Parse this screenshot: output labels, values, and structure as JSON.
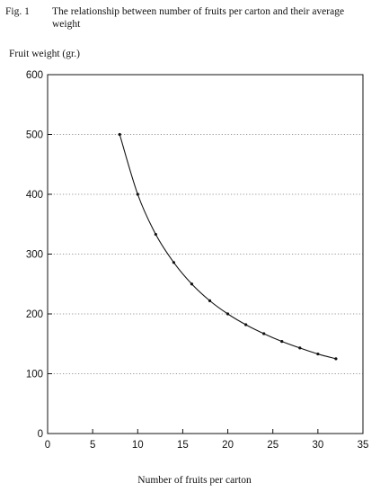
{
  "figure": {
    "number": "Fig. 1",
    "caption_line1": "The relationship between number of fruits per carton and their average",
    "caption_line2": "weight"
  },
  "chart_data": {
    "type": "line",
    "title": "The relationship between number of fruits per carton and their average weight",
    "xlabel": "Number of fruits per carton",
    "ylabel": "Fruit weight (gr.)",
    "xlim": [
      0,
      35
    ],
    "ylim": [
      0,
      600
    ],
    "x_ticks": [
      0,
      5,
      10,
      15,
      20,
      25,
      30,
      35
    ],
    "y_ticks": [
      0,
      100,
      200,
      300,
      400,
      500,
      600
    ],
    "grid": "horizontal dotted",
    "series": [
      {
        "x": [
          8,
          10,
          12,
          14,
          16,
          18,
          20,
          22,
          24,
          26,
          28,
          30,
          32
        ],
        "y": [
          500,
          400,
          333,
          286,
          250,
          222,
          200,
          182,
          167,
          154,
          143,
          133,
          125
        ]
      }
    ]
  }
}
